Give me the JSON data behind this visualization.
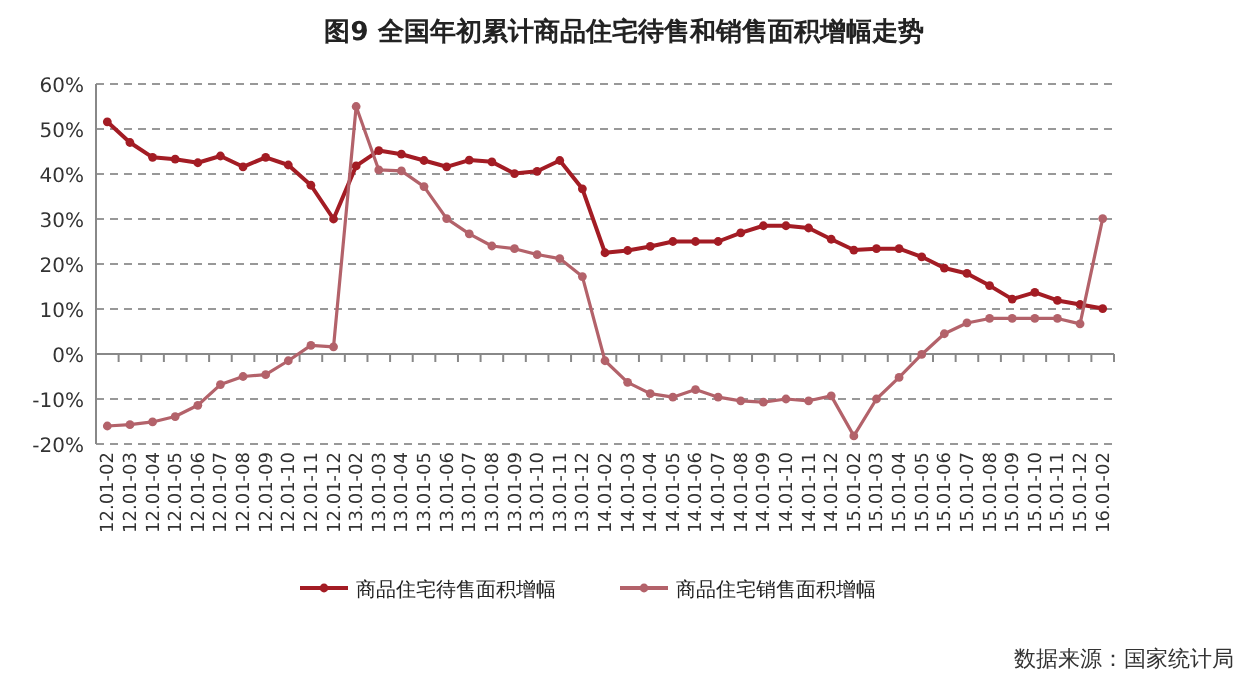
{
  "chart_data": {
    "type": "line",
    "title": "图9 全国年初累计商品住宅待售和销售面积增幅走势",
    "categories": [
      "12.01-02",
      "12.01-03",
      "12.01-04",
      "12.01-05",
      "12.01-06",
      "12.01-07",
      "12.01-08",
      "12.01-09",
      "12.01-10",
      "12.01-11",
      "12.01-12",
      "13.01-02",
      "13.01-03",
      "13.01-04",
      "13.01-05",
      "13.01-06",
      "13.01-07",
      "13.01-08",
      "13.01-09",
      "13.01-10",
      "13.01-11",
      "13.01-12",
      "14.01-02",
      "14.01-03",
      "14.01-04",
      "14.01-05",
      "14.01-06",
      "14.01-07",
      "14.01-08",
      "14.01-09",
      "14.01-10",
      "14.01-11",
      "14.01-12",
      "15.01-02",
      "15.01-03",
      "15.01-04",
      "15.01-05",
      "15.01-06",
      "15.01-07",
      "15.01-08",
      "15.01-09",
      "15.01-10",
      "15.01-11",
      "15.01-12",
      "16.01-02"
    ],
    "series": [
      {
        "name": "商品住宅待售面积增幅",
        "color": "#a31c24",
        "values": [
          51.6,
          47,
          43.7,
          43.3,
          42.5,
          44,
          41.6,
          43.7,
          42,
          37.5,
          30,
          41.8,
          45.2,
          44.4,
          43,
          41.6,
          43.1,
          42.7,
          40.1,
          40.6,
          43,
          36.7,
          22.5,
          23,
          23.9,
          25,
          25,
          25,
          26.9,
          28.5,
          28.5,
          28,
          25.5,
          23.1,
          23.4,
          23.4,
          21.6,
          19.1,
          17.9,
          15.2,
          12.2,
          13.7,
          11.9,
          11,
          10.1
        ]
      },
      {
        "name": "商品住宅销售面积增幅",
        "color": "#b3626a",
        "values": [
          -16,
          -15.7,
          -15.1,
          -13.9,
          -11.4,
          -6.8,
          -5,
          -4.6,
          -1.5,
          1.9,
          1.6,
          55,
          40.9,
          40.7,
          37.2,
          30.1,
          26.7,
          24,
          23.4,
          22.1,
          21.2,
          17.2,
          -1.5,
          -6.3,
          -8.8,
          -9.6,
          -7.9,
          -9.6,
          -10.4,
          -10.7,
          -10,
          -10.4,
          -9.3,
          -18.2,
          -10,
          -5.2,
          -0.1,
          4.5,
          6.9,
          7.9,
          7.9,
          7.9,
          7.9,
          6.7,
          30.1
        ]
      }
    ],
    "ylim": [
      -20,
      60
    ],
    "yticks": [
      {
        "value": -20,
        "label": "-20%"
      },
      {
        "value": -10,
        "label": "-10%"
      },
      {
        "value": 0,
        "label": "0%"
      },
      {
        "value": 10,
        "label": "10%"
      },
      {
        "value": 20,
        "label": "20%"
      },
      {
        "value": 30,
        "label": "30%"
      },
      {
        "value": 40,
        "label": "40%"
      },
      {
        "value": 50,
        "label": "50%"
      },
      {
        "value": 60,
        "label": "60%"
      }
    ],
    "grid": "y",
    "legend": "bottom",
    "marker": "circle",
    "line_style": "solid",
    "annotations": [
      "数据来源：国家统计局"
    ]
  }
}
